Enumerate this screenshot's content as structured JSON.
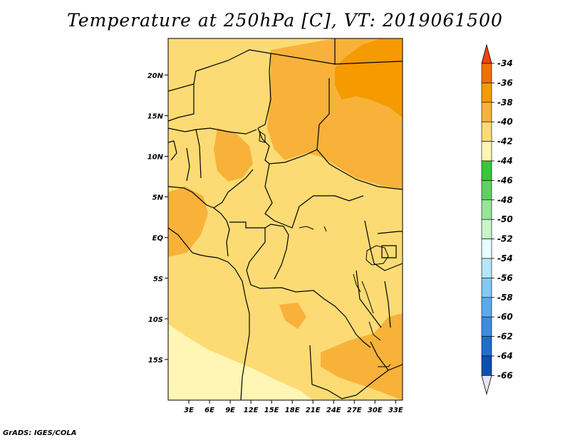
{
  "title": "Temperature at 250hPa [C], VT: 2019061500",
  "credit": "GrADS: IGES/COLA",
  "map": {
    "lon_range": [
      0,
      34
    ],
    "lat_range": [
      -20,
      24.5
    ],
    "x_ticks": [
      "3E",
      "6E",
      "9E",
      "12E",
      "15E",
      "18E",
      "21E",
      "24E",
      "27E",
      "30E",
      "33E"
    ],
    "x_tick_values": [
      3,
      6,
      9,
      12,
      15,
      18,
      21,
      24,
      27,
      30,
      33
    ],
    "y_ticks": [
      "20N",
      "15N",
      "10N",
      "5N",
      "EQ",
      "5S",
      "10S",
      "15S"
    ],
    "y_tick_values": [
      20,
      15,
      10,
      5,
      0,
      -5,
      -10,
      -15
    ],
    "variable": "temperature",
    "level": "250hPa",
    "units": "C",
    "valid_time": "2019061500"
  },
  "colorbar": {
    "labels": [
      "-34",
      "-36",
      "-38",
      "-40",
      "-42",
      "-44",
      "-46",
      "-48",
      "-50",
      "-52",
      "-54",
      "-56",
      "-58",
      "-60",
      "-62",
      "-64",
      "-66"
    ],
    "colors": [
      "#f5420f",
      "#f56f00",
      "#f59a00",
      "#f8b23a",
      "#fcdb74",
      "#fff5b4",
      "#37c837",
      "#5ed25e",
      "#96e696",
      "#c8f5c8",
      "#e6ffff",
      "#b4e6fa",
      "#82c8f5",
      "#5aaaf0",
      "#3c8ce6",
      "#1e6ed2",
      "#0a50b4",
      "#0a1e78",
      "#e6e6fa"
    ],
    "top_arrow_color": "#f5420f",
    "bottom_arrow_color": "#e6e6fa"
  },
  "field_colors": {
    "minus_36": "#f59a00",
    "minus_38": "#f8b23a",
    "minus_40": "#fcdb74",
    "minus_42": "#fff5b4",
    "coast": "#000000"
  }
}
